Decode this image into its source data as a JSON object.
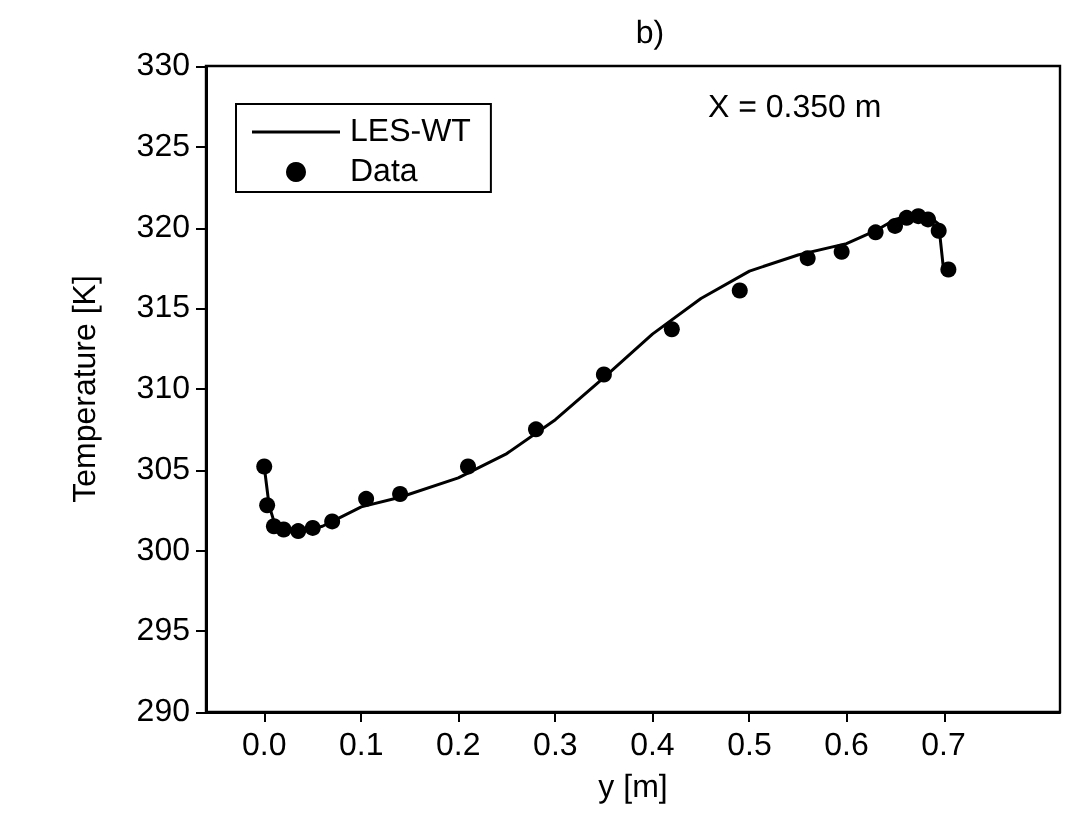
{
  "chart_data": {
    "type": "line",
    "title": "b)",
    "xlabel": "y [m]",
    "ylabel": "Temperature [K]",
    "annotations": [
      "X = 0.350 m"
    ],
    "xlim": [
      -0.06,
      0.82
    ],
    "xticks": [
      {
        "value": 0,
        "label": "0.0"
      },
      {
        "value": 0.1,
        "label": "0.1"
      },
      {
        "value": 0.2,
        "label": "0.2"
      },
      {
        "value": 0.3,
        "label": "0.3"
      },
      {
        "value": 0.4,
        "label": "0.4"
      },
      {
        "value": 0.5,
        "label": "0.5"
      },
      {
        "value": 0.6,
        "label": "0.6"
      },
      {
        "value": 0.7,
        "label": "0.7"
      }
    ],
    "ylim": [
      290,
      330
    ],
    "yticks": [
      290,
      295,
      300,
      305,
      310,
      315,
      320,
      325,
      330
    ],
    "grid": false,
    "legend": "top left",
    "series": [
      {
        "name": "LES-WT",
        "color": "#000000",
        "marker": "none",
        "line_style": "solid",
        "x": [
          0,
          0.005,
          0.01,
          0.02,
          0.04,
          0.06,
          0.08,
          0.1,
          0.14,
          0.2,
          0.25,
          0.3,
          0.35,
          0.4,
          0.45,
          0.5,
          0.55,
          0.6,
          0.63,
          0.65,
          0.67,
          0.685,
          0.695,
          0.7
        ],
        "values": [
          305.2,
          302.8,
          301.8,
          301.4,
          301.2,
          301.5,
          302.1,
          302.7,
          303.3,
          304.5,
          306.0,
          308.1,
          310.7,
          313.4,
          315.6,
          317.3,
          318.3,
          319.0,
          319.8,
          320.5,
          320.8,
          320.7,
          320.2,
          317.4
        ]
      },
      {
        "name": "Data",
        "type": "scatter",
        "color": "#000000",
        "marker": "circle",
        "x": [
          0,
          0.003,
          0.01,
          0.02,
          0.035,
          0.05,
          0.07,
          0.105,
          0.14,
          0.21,
          0.28,
          0.35,
          0.42,
          0.49,
          0.56,
          0.595,
          0.63,
          0.65,
          0.662,
          0.674,
          0.684,
          0.695,
          0.705
        ],
        "values": [
          305.2,
          302.8,
          301.5,
          301.3,
          301.2,
          301.4,
          301.8,
          303.2,
          303.5,
          305.2,
          307.5,
          310.9,
          313.7,
          316.1,
          318.1,
          318.5,
          319.7,
          320.1,
          320.6,
          320.7,
          320.5,
          319.8,
          317.4
        ]
      }
    ]
  }
}
